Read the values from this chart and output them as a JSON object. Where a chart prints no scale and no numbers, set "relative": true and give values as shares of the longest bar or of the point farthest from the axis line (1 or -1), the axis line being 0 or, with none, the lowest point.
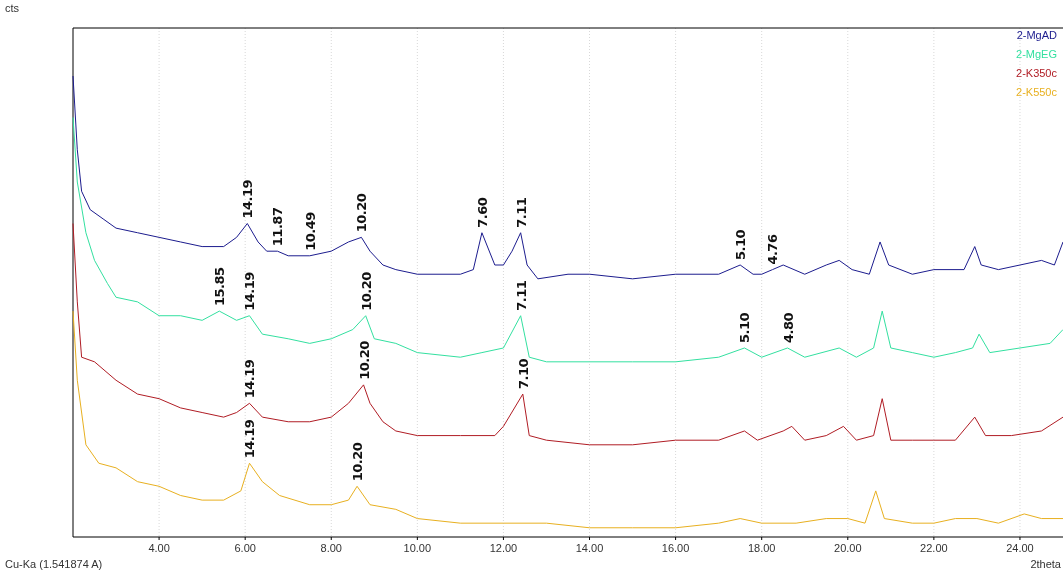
{
  "chart_data": {
    "type": "line",
    "relative": true,
    "xlabel": "2theta",
    "xlim": [
      2,
      25
    ],
    "xticks": [
      {
        "value": 4,
        "label": "4.00"
      },
      {
        "value": 6,
        "label": "6.00"
      },
      {
        "value": 8,
        "label": "8.00"
      },
      {
        "value": 10,
        "label": "10.00"
      },
      {
        "value": 12,
        "label": "12.00"
      },
      {
        "value": 14,
        "label": "14.00"
      },
      {
        "value": 16,
        "label": "16.00"
      },
      {
        "value": 18,
        "label": "18.00"
      },
      {
        "value": 20,
        "label": "20.00"
      },
      {
        "value": 22,
        "label": "22.00"
      },
      {
        "value": 24,
        "label": "24.00"
      }
    ],
    "grid": "x",
    "legend": "top right",
    "tick_labels": "x",
    "series": [
      {
        "name": "2-MgAD",
        "color": "#1c1c8e",
        "x": [
          2.0,
          2.1,
          2.2,
          2.4,
          2.7,
          3.0,
          3.5,
          4.0,
          4.5,
          5.0,
          5.5,
          5.8,
          6.05,
          6.3,
          6.5,
          6.75,
          7.0,
          7.5,
          8.0,
          8.4,
          8.7,
          8.9,
          9.2,
          9.5,
          10.0,
          11.0,
          11.3,
          11.5,
          11.8,
          12.0,
          12.2,
          12.4,
          12.55,
          12.8,
          13.5,
          14.0,
          15.0,
          16.0,
          17.0,
          17.5,
          17.8,
          18.0,
          18.25,
          18.5,
          19.0,
          19.5,
          19.8,
          20.1,
          20.5,
          20.75,
          20.95,
          21.5,
          22.0,
          22.7,
          22.95,
          23.1,
          23.5,
          24.0,
          24.5,
          24.8,
          25.0
        ],
        "values": [
          1.0,
          0.84,
          0.75,
          0.71,
          0.69,
          0.67,
          0.66,
          0.65,
          0.64,
          0.63,
          0.63,
          0.65,
          0.68,
          0.64,
          0.62,
          0.62,
          0.61,
          0.61,
          0.62,
          0.64,
          0.65,
          0.62,
          0.59,
          0.58,
          0.57,
          0.57,
          0.58,
          0.66,
          0.59,
          0.59,
          0.62,
          0.66,
          0.59,
          0.56,
          0.57,
          0.57,
          0.56,
          0.57,
          0.57,
          0.59,
          0.57,
          0.57,
          0.58,
          0.59,
          0.57,
          0.59,
          0.6,
          0.58,
          0.57,
          0.64,
          0.59,
          0.57,
          0.58,
          0.58,
          0.63,
          0.59,
          0.58,
          0.59,
          0.6,
          0.59,
          0.64
        ]
      },
      {
        "name": "2-MgEG",
        "color": "#33e0a0",
        "x": [
          2.0,
          2.1,
          2.3,
          2.5,
          2.8,
          3.0,
          3.5,
          4.0,
          4.5,
          5.0,
          5.4,
          5.8,
          6.1,
          6.4,
          7.0,
          7.5,
          8.0,
          8.5,
          8.8,
          9.0,
          9.5,
          10.0,
          11.0,
          11.5,
          12.0,
          12.4,
          12.6,
          13.0,
          14.0,
          15.0,
          16.0,
          17.0,
          17.6,
          18.0,
          18.6,
          19.0,
          19.8,
          20.2,
          20.6,
          20.8,
          21.0,
          21.5,
          22.0,
          22.5,
          22.9,
          23.05,
          23.3,
          24.0,
          24.7,
          25.0
        ],
        "values": [
          0.91,
          0.77,
          0.66,
          0.6,
          0.55,
          0.52,
          0.51,
          0.48,
          0.48,
          0.47,
          0.49,
          0.47,
          0.48,
          0.44,
          0.43,
          0.42,
          0.43,
          0.45,
          0.48,
          0.43,
          0.42,
          0.4,
          0.39,
          0.4,
          0.41,
          0.48,
          0.39,
          0.38,
          0.38,
          0.38,
          0.38,
          0.39,
          0.41,
          0.39,
          0.41,
          0.39,
          0.41,
          0.39,
          0.41,
          0.49,
          0.41,
          0.4,
          0.39,
          0.4,
          0.41,
          0.44,
          0.4,
          0.41,
          0.42,
          0.45
        ]
      },
      {
        "name": "2-K350c",
        "color": "#b01c24",
        "x": [
          2.0,
          2.1,
          2.2,
          2.5,
          3.0,
          3.5,
          4.0,
          4.5,
          5.0,
          5.5,
          5.8,
          6.1,
          6.4,
          7.0,
          7.5,
          8.0,
          8.4,
          8.75,
          8.9,
          9.2,
          9.5,
          10.0,
          11.0,
          11.8,
          12.0,
          12.45,
          12.6,
          13.0,
          14.0,
          15.0,
          16.0,
          17.0,
          17.6,
          17.9,
          18.5,
          18.7,
          19.0,
          19.5,
          19.9,
          20.2,
          20.6,
          20.8,
          21.0,
          21.5,
          22.0,
          22.5,
          22.95,
          23.2,
          23.8,
          24.5,
          25.0
        ],
        "values": [
          0.68,
          0.51,
          0.39,
          0.38,
          0.34,
          0.31,
          0.3,
          0.28,
          0.27,
          0.26,
          0.27,
          0.29,
          0.26,
          0.25,
          0.25,
          0.26,
          0.29,
          0.33,
          0.29,
          0.25,
          0.23,
          0.22,
          0.22,
          0.22,
          0.24,
          0.31,
          0.22,
          0.21,
          0.2,
          0.2,
          0.21,
          0.21,
          0.23,
          0.21,
          0.23,
          0.24,
          0.21,
          0.22,
          0.24,
          0.21,
          0.22,
          0.3,
          0.21,
          0.21,
          0.21,
          0.21,
          0.26,
          0.22,
          0.22,
          0.23,
          0.26
        ]
      },
      {
        "name": "2-K550c",
        "color": "#e8b020",
        "x": [
          2.0,
          2.1,
          2.3,
          2.6,
          3.0,
          3.5,
          4.0,
          4.5,
          5.0,
          5.5,
          5.9,
          6.1,
          6.4,
          6.8,
          7.5,
          8.0,
          8.4,
          8.6,
          8.9,
          9.5,
          10.0,
          11.0,
          12.0,
          13.0,
          14.0,
          15.0,
          16.0,
          17.0,
          17.5,
          18.0,
          18.8,
          19.5,
          20.0,
          20.4,
          20.65,
          20.85,
          21.5,
          22.0,
          22.5,
          23.0,
          23.5,
          24.1,
          24.5,
          25.0
        ],
        "values": [
          0.49,
          0.34,
          0.2,
          0.16,
          0.15,
          0.12,
          0.11,
          0.09,
          0.08,
          0.08,
          0.1,
          0.16,
          0.12,
          0.09,
          0.07,
          0.07,
          0.08,
          0.11,
          0.07,
          0.06,
          0.04,
          0.03,
          0.03,
          0.03,
          0.02,
          0.02,
          0.02,
          0.03,
          0.04,
          0.03,
          0.03,
          0.04,
          0.04,
          0.03,
          0.1,
          0.04,
          0.03,
          0.03,
          0.04,
          0.04,
          0.03,
          0.05,
          0.04,
          0.04
        ]
      }
    ],
    "annotations": [
      {
        "text": "14.19",
        "x": 6.05,
        "y": 0.68
      },
      {
        "text": "11.87",
        "x": 6.75,
        "y": 0.62
      },
      {
        "text": "10.49",
        "x": 7.5,
        "y": 0.61
      },
      {
        "text": "10.20",
        "x": 8.7,
        "y": 0.65
      },
      {
        "text": "7.60",
        "x": 11.5,
        "y": 0.66
      },
      {
        "text": "7.11",
        "x": 12.4,
        "y": 0.66
      },
      {
        "text": "5.10",
        "x": 17.5,
        "y": 0.59
      },
      {
        "text": "4.76",
        "x": 18.25,
        "y": 0.58
      },
      {
        "text": "15.85",
        "x": 5.4,
        "y": 0.49
      },
      {
        "text": "14.19",
        "x": 6.1,
        "y": 0.48
      },
      {
        "text": "10.20",
        "x": 8.8,
        "y": 0.48
      },
      {
        "text": "7.11",
        "x": 12.4,
        "y": 0.48
      },
      {
        "text": "5.10",
        "x": 17.6,
        "y": 0.41
      },
      {
        "text": "4.80",
        "x": 18.6,
        "y": 0.41
      },
      {
        "text": "14.19",
        "x": 6.1,
        "y": 0.29
      },
      {
        "text": "10.20",
        "x": 8.75,
        "y": 0.33
      },
      {
        "text": "7.10",
        "x": 12.45,
        "y": 0.31
      },
      {
        "text": "14.19",
        "x": 6.1,
        "y": 0.16
      },
      {
        "text": "10.20",
        "x": 8.6,
        "y": 0.11
      },
      "cts",
      "Cu-Ka (1.541874 A)"
    ]
  }
}
